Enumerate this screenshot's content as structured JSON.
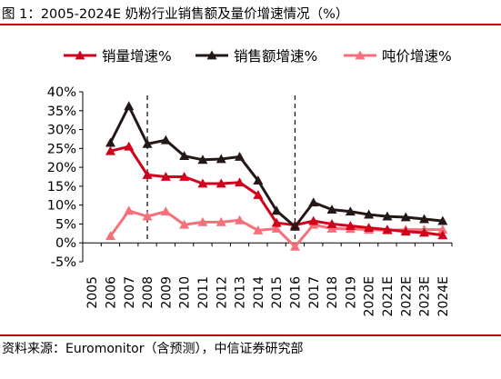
{
  "figure": {
    "title": "图 1：2005-2024E 奶粉行业销售额及量价增速情况（%）",
    "source": "资料来源：Euromonitor（含预测），中信证券研究部"
  },
  "chart_data": {
    "type": "line",
    "categories": [
      "2005",
      "2006",
      "2007",
      "2008",
      "2009",
      "2010",
      "2011",
      "2012",
      "2013",
      "2014",
      "2015",
      "2016",
      "2017",
      "2018",
      "2019",
      "2020E",
      "2021E",
      "2022E",
      "2023E",
      "2024E"
    ],
    "ylim": [
      -5,
      40
    ],
    "yticks": [
      -5,
      0,
      5,
      10,
      15,
      20,
      25,
      30,
      35,
      40
    ],
    "ytick_labels": [
      "-5%",
      "0%",
      "5%",
      "10%",
      "15%",
      "20%",
      "25%",
      "30%",
      "35%",
      "40%"
    ],
    "legend_position": "top",
    "grid": false,
    "dashed_vlines": [
      "2008",
      "2016"
    ],
    "series": [
      {
        "name": "销量增速%",
        "color": "#d0021b",
        "marker": "triangle",
        "values": [
          null,
          24.3,
          25.5,
          18.0,
          17.5,
          17.5,
          15.7,
          15.7,
          16.0,
          12.7,
          5.3,
          4.7,
          5.8,
          5.0,
          4.5,
          4.0,
          3.5,
          3.0,
          2.7,
          2.0
        ]
      },
      {
        "name": "销售额增速%",
        "color": "#231815",
        "marker": "triangle",
        "values": [
          null,
          26.5,
          36.2,
          26.2,
          27.2,
          23.0,
          22.0,
          22.2,
          22.8,
          16.5,
          8.5,
          4.3,
          10.7,
          8.8,
          8.3,
          7.5,
          7.0,
          6.8,
          6.3,
          5.8
        ]
      },
      {
        "name": "吨价增速%",
        "color": "#f5707a",
        "marker": "triangle",
        "values": [
          null,
          1.8,
          8.5,
          7.0,
          8.3,
          4.8,
          5.5,
          5.5,
          6.0,
          3.3,
          3.8,
          -1.0,
          4.8,
          3.8,
          3.7,
          3.5,
          3.3,
          3.5,
          3.5,
          3.5
        ]
      }
    ]
  }
}
